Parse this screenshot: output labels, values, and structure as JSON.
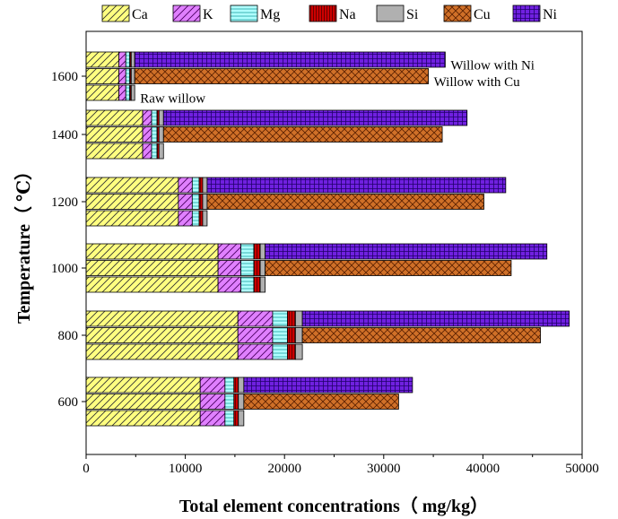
{
  "chart_data": {
    "type": "bar",
    "orientation": "horizontal",
    "stacked": true,
    "xlabel": "Total element concentrations（ mg/kg）",
    "ylabel": "Temperature（ ℃）",
    "xlim": [
      0,
      50000
    ],
    "x_ticks": [
      "0",
      "10000",
      "20000",
      "30000",
      "40000",
      "50000"
    ],
    "y_ticks": [
      "600",
      "800",
      "1000",
      "1200",
      "1400",
      "1600"
    ],
    "grid": false,
    "legend_position": "top",
    "elements": [
      {
        "name": "Ca",
        "color": "#ffff80",
        "pattern": "diagonal-hatch"
      },
      {
        "name": "K",
        "color": "#e080ff",
        "pattern": "diagonal-hatch"
      },
      {
        "name": "Mg",
        "color": "#b0ffff",
        "pattern": "horizontal-lines"
      },
      {
        "name": "Na",
        "color": "#cc0000",
        "pattern": "vertical-lines"
      },
      {
        "name": "Si",
        "color": "#b0b0b0",
        "pattern": "solid"
      },
      {
        "name": "Cu",
        "color": "#d07028",
        "pattern": "cross-hatch"
      },
      {
        "name": "Ni",
        "color": "#7020e0",
        "pattern": "grid"
      }
    ],
    "sample_labels": [
      "Willow with Ni",
      "Willow with Cu",
      "Raw willow"
    ],
    "groups": [
      {
        "temperature": "1600",
        "bars": [
          {
            "sample": "Willow with Ni",
            "values": [
              3300,
              700,
              400,
              150,
              350,
              0,
              31300
            ]
          },
          {
            "sample": "Willow with Cu",
            "values": [
              3300,
              700,
              400,
              150,
              350,
              29600,
              0
            ]
          },
          {
            "sample": "Raw willow",
            "values": [
              3300,
              700,
              400,
              150,
              350,
              0,
              0
            ]
          }
        ]
      },
      {
        "temperature": "1400",
        "bars": [
          {
            "sample": "Willow with Ni",
            "values": [
              5700,
              900,
              550,
              200,
              450,
              0,
              30600
            ]
          },
          {
            "sample": "Willow with Cu",
            "values": [
              5700,
              900,
              550,
              200,
              450,
              28100,
              0
            ]
          },
          {
            "sample": "Raw willow",
            "values": [
              5700,
              900,
              550,
              200,
              450,
              0,
              0
            ]
          }
        ]
      },
      {
        "temperature": "1200",
        "bars": [
          {
            "sample": "Willow with Ni",
            "values": [
              9300,
              1400,
              700,
              350,
              450,
              0,
              30100
            ]
          },
          {
            "sample": "Willow with Cu",
            "values": [
              9300,
              1400,
              700,
              350,
              450,
              27900,
              0
            ]
          },
          {
            "sample": "Raw willow",
            "values": [
              9300,
              1400,
              700,
              350,
              450,
              0,
              0
            ]
          }
        ]
      },
      {
        "temperature": "1000",
        "bars": [
          {
            "sample": "Willow with Ni",
            "values": [
              13300,
              2300,
              1300,
              650,
              500,
              0,
              28400
            ]
          },
          {
            "sample": "Willow with Cu",
            "values": [
              13300,
              2300,
              1300,
              650,
              500,
              24800,
              0
            ]
          },
          {
            "sample": "Raw willow",
            "values": [
              13300,
              2300,
              1300,
              650,
              500,
              0,
              0
            ]
          }
        ]
      },
      {
        "temperature": "800",
        "bars": [
          {
            "sample": "Willow with Ni",
            "values": [
              15300,
              3500,
              1500,
              800,
              700,
              0,
              26900
            ]
          },
          {
            "sample": "Willow with Cu",
            "values": [
              15300,
              3500,
              1500,
              800,
              700,
              24000,
              0
            ]
          },
          {
            "sample": "Raw willow",
            "values": [
              15300,
              3500,
              1500,
              800,
              700,
              0,
              0
            ]
          }
        ]
      },
      {
        "temperature": "600",
        "bars": [
          {
            "sample": "Willow with Ni",
            "values": [
              11500,
              2500,
              900,
              450,
              550,
              0,
              17000
            ]
          },
          {
            "sample": "Willow with Cu",
            "values": [
              11500,
              2500,
              900,
              450,
              550,
              15600,
              0
            ]
          },
          {
            "sample": "Raw willow",
            "values": [
              11500,
              2500,
              900,
              450,
              550,
              0,
              0
            ]
          }
        ]
      }
    ]
  }
}
